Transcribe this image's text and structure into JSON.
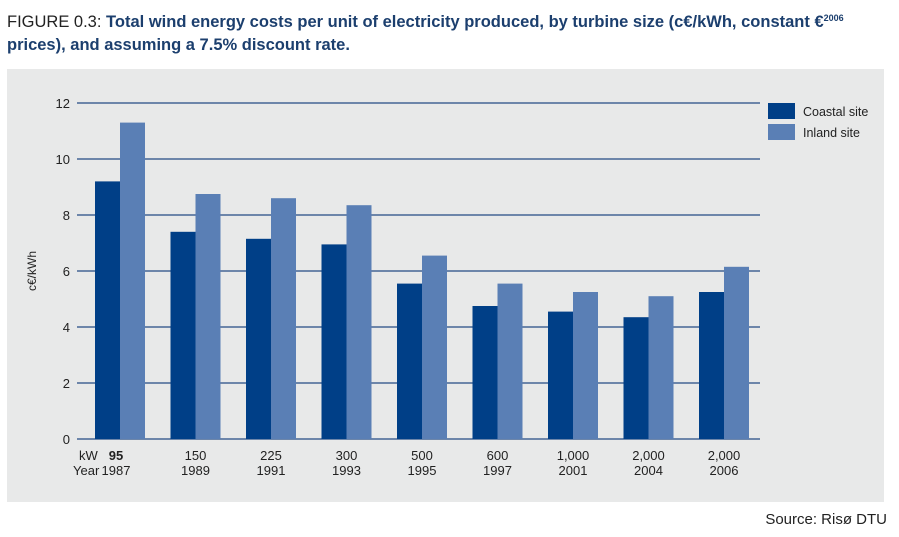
{
  "figure": {
    "label": "FIGURE 0.3:",
    "title_part1": "Total wind energy costs per unit of electricity produced, by turbine size (c€/kWh, constant €",
    "title_sup": "2006",
    "title_part2": " prices), and assuming a 7.5% discount rate.",
    "source": "Source: Risø DTU"
  },
  "colors": {
    "coastal": "#003f87",
    "inland": "#5a7fb5",
    "grid": "#6d86aa",
    "text": "#222222",
    "title": "#1c3f6e"
  },
  "chart_data": {
    "type": "bar",
    "title": "Total wind energy costs per unit of electricity produced, by turbine size (c€/kWh, constant €2006 prices), and assuming a 7.5% discount rate.",
    "xlabel": "",
    "ylabel": "c€/kWh",
    "ylim": [
      0,
      12
    ],
    "yticks": [
      0,
      2,
      4,
      6,
      8,
      10,
      12
    ],
    "grid": true,
    "legend_position": "top-right",
    "x_row_labels": [
      "kW",
      "Year"
    ],
    "categories": [
      {
        "kw": "95",
        "year": "1987"
      },
      {
        "kw": "150",
        "year": "1989"
      },
      {
        "kw": "225",
        "year": "1991"
      },
      {
        "kw": "300",
        "year": "1993"
      },
      {
        "kw": "500",
        "year": "1995"
      },
      {
        "kw": "600",
        "year": "1997"
      },
      {
        "kw": "1,000",
        "year": "2001"
      },
      {
        "kw": "2,000",
        "year": "2004"
      },
      {
        "kw": "2,000",
        "year": "2006"
      }
    ],
    "series": [
      {
        "name": "Coastal site",
        "values": [
          9.2,
          7.4,
          7.15,
          6.95,
          5.55,
          4.75,
          4.55,
          4.35,
          5.25
        ]
      },
      {
        "name": "Inland site",
        "values": [
          11.3,
          8.75,
          8.6,
          8.35,
          6.55,
          5.55,
          5.25,
          5.1,
          6.15
        ]
      }
    ]
  }
}
